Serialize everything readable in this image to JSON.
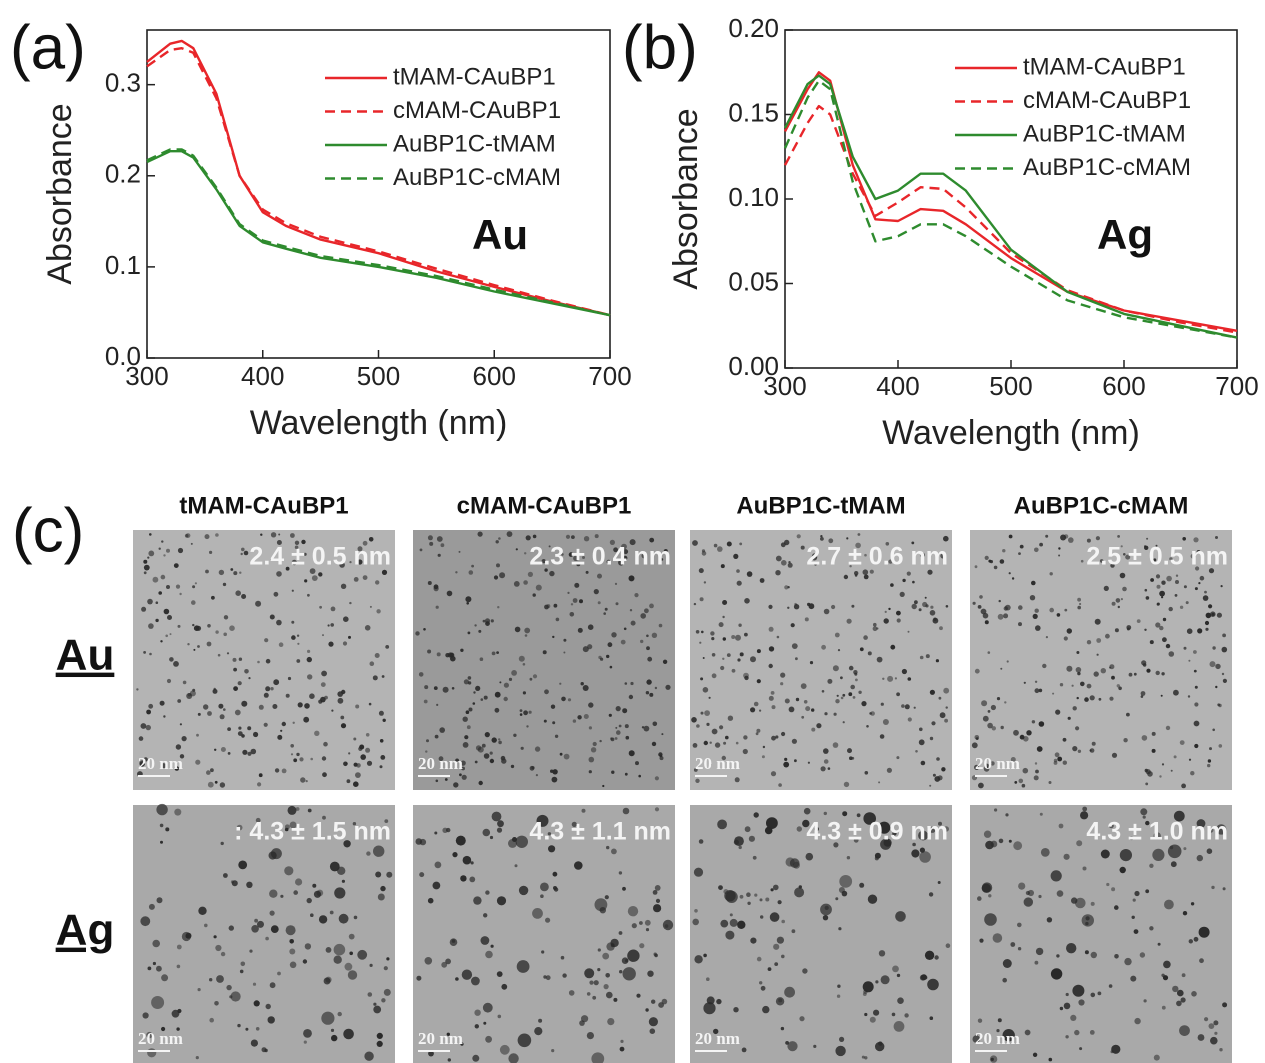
{
  "chart_data": [
    {
      "type": "line",
      "panel_label": "(a)",
      "annotation": "Au",
      "x_label": "Wavelength (nm)",
      "y_label": "Absorbance",
      "x": [
        300,
        320,
        330,
        340,
        360,
        380,
        400,
        420,
        450,
        500,
        550,
        600,
        650,
        700
      ],
      "xlim": [
        300,
        700
      ],
      "xticks": [
        300,
        400,
        500,
        600,
        700
      ],
      "ylim": [
        0,
        0.36
      ],
      "yticks": [
        {
          "value": 0,
          "label": "0.0"
        },
        0.1,
        0.2,
        0.3
      ],
      "legend": "top-right",
      "series": [
        {
          "name": "tMAM-CAuBP1",
          "color": "#e8262a",
          "dashed": false,
          "values": [
            0.325,
            0.345,
            0.348,
            0.34,
            0.29,
            0.2,
            0.16,
            0.145,
            0.13,
            0.115,
            0.095,
            0.078,
            0.062,
            0.047
          ]
        },
        {
          "name": "cMAM-CAuBP1",
          "color": "#e8262a",
          "dashed": true,
          "values": [
            0.32,
            0.338,
            0.34,
            0.335,
            0.285,
            0.2,
            0.163,
            0.148,
            0.133,
            0.117,
            0.098,
            0.08,
            0.063,
            0.047
          ]
        },
        {
          "name": "AuBP1C-tMAM",
          "color": "#2e8b2e",
          "dashed": false,
          "values": [
            0.215,
            0.227,
            0.227,
            0.22,
            0.185,
            0.145,
            0.127,
            0.12,
            0.11,
            0.1,
            0.088,
            0.073,
            0.06,
            0.047
          ]
        },
        {
          "name": "AuBP1C-cMAM",
          "color": "#2e8b2e",
          "dashed": true,
          "values": [
            0.217,
            0.229,
            0.229,
            0.222,
            0.187,
            0.147,
            0.129,
            0.122,
            0.112,
            0.102,
            0.09,
            0.075,
            0.061,
            0.047
          ]
        }
      ]
    },
    {
      "type": "line",
      "panel_label": "(b)",
      "annotation": "Ag",
      "x_label": "Wavelength (nm)",
      "y_label": "Absorbance",
      "x": [
        300,
        320,
        330,
        340,
        360,
        380,
        400,
        420,
        440,
        460,
        500,
        550,
        600,
        650,
        700
      ],
      "xlim": [
        300,
        700
      ],
      "xticks": [
        300,
        400,
        500,
        600,
        700
      ],
      "ylim": [
        0,
        0.2
      ],
      "yticks": [
        {
          "value": 0,
          "label": "0.00"
        },
        {
          "value": 0.05,
          "label": "0.05"
        },
        {
          "value": 0.1,
          "label": "0.10"
        },
        {
          "value": 0.15,
          "label": "0.15"
        },
        {
          "value": 0.2,
          "label": "0.20"
        }
      ],
      "legend": "top-right",
      "series": [
        {
          "name": "tMAM-CAuBP1",
          "color": "#e8262a",
          "dashed": false,
          "values": [
            0.14,
            0.165,
            0.175,
            0.17,
            0.12,
            0.088,
            0.087,
            0.094,
            0.093,
            0.085,
            0.065,
            0.045,
            0.034,
            0.028,
            0.022
          ]
        },
        {
          "name": "cMAM-CAuBP1",
          "color": "#e8262a",
          "dashed": true,
          "values": [
            0.12,
            0.145,
            0.155,
            0.15,
            0.115,
            0.09,
            0.098,
            0.107,
            0.106,
            0.095,
            0.068,
            0.046,
            0.034,
            0.027,
            0.021
          ]
        },
        {
          "name": "AuBP1C-tMAM",
          "color": "#2e8b2e",
          "dashed": false,
          "values": [
            0.142,
            0.168,
            0.173,
            0.168,
            0.125,
            0.1,
            0.105,
            0.115,
            0.115,
            0.105,
            0.07,
            0.045,
            0.032,
            0.025,
            0.018
          ]
        },
        {
          "name": "AuBP1C-cMAM",
          "color": "#2e8b2e",
          "dashed": true,
          "values": [
            0.13,
            0.16,
            0.17,
            0.165,
            0.11,
            0.075,
            0.078,
            0.085,
            0.085,
            0.078,
            0.06,
            0.04,
            0.03,
            0.024,
            0.018
          ]
        }
      ]
    }
  ],
  "tem_panel": {
    "label": "(c)",
    "columns": [
      "tMAM-CAuBP1",
      "cMAM-CAuBP1",
      "AuBP1C-tMAM",
      "AuBP1C-cMAM"
    ],
    "rows": [
      {
        "label": "Au",
        "images": [
          {
            "size": "2.4 ± 0.5 nm",
            "scale": "20 nm"
          },
          {
            "size": "2.3 ± 0.4 nm",
            "scale": "20 nm"
          },
          {
            "size": "2.7 ± 0.6 nm",
            "scale": "20 nm"
          },
          {
            "size": "2.5 ± 0.5 nm",
            "scale": "20 nm"
          }
        ]
      },
      {
        "label": "Ag",
        "images": [
          {
            "size": ": 4.3 ± 1.5 nm",
            "scale": "20 nm"
          },
          {
            "size": "4.3 ± 1.1 nm",
            "scale": "20 nm"
          },
          {
            "size": "4.3 ± 0.9 nm",
            "scale": "20 nm"
          },
          {
            "size": "4.3 ± 1.0 nm",
            "scale": "20 nm"
          }
        ]
      }
    ]
  }
}
